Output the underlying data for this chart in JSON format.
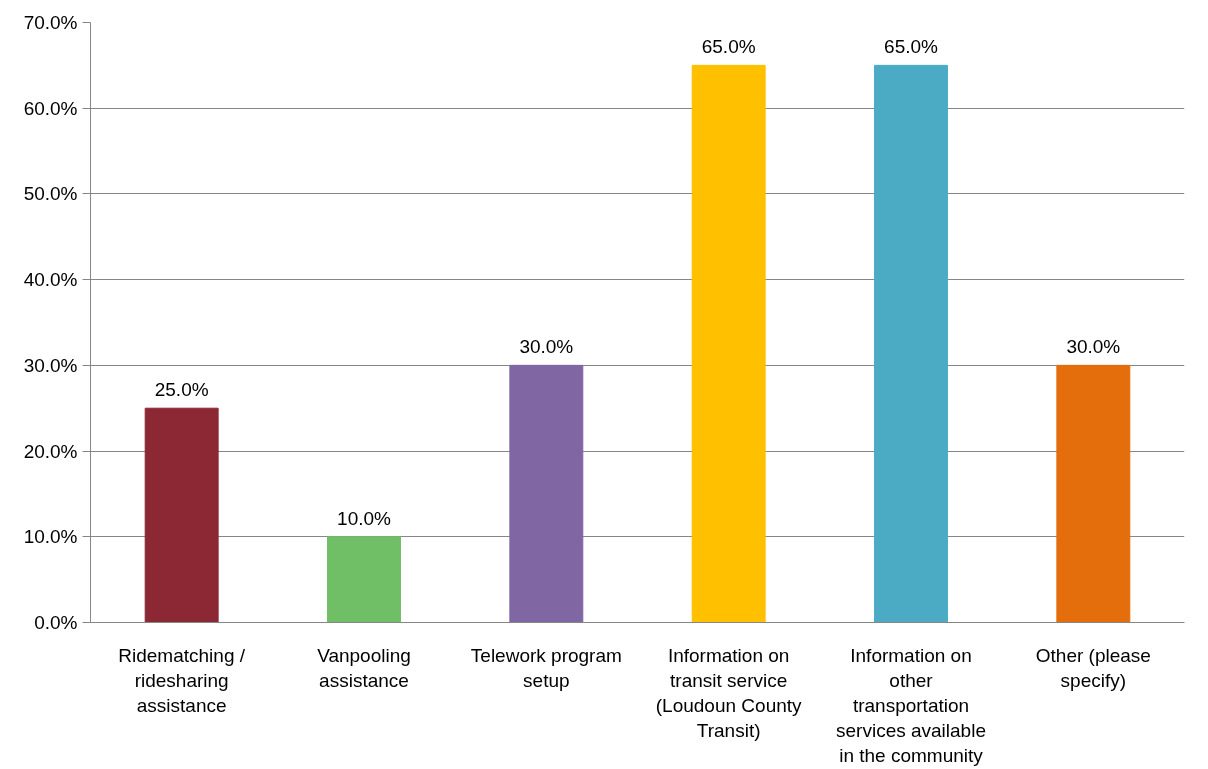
{
  "chart_data": {
    "type": "bar",
    "categories": [
      "Ridematching /\nridesharing\nassistance",
      "Vanpooling\nassistance",
      "Telework program\nsetup",
      "Information on\ntransit service\n(Loudoun County\nTransit)",
      "Information on\nother\ntransportation\nservices available\nin the community",
      "Other (please\nspecify)"
    ],
    "values": [
      25.0,
      10.0,
      30.0,
      65.0,
      65.0,
      30.0
    ],
    "colors": [
      "#8b2834",
      "#70bf67",
      "#8066a2",
      "#ffc000",
      "#4babc5",
      "#e46d0c"
    ],
    "value_labels": [
      "25.0%",
      "10.0%",
      "30.0%",
      "65.0%",
      "65.0%",
      "30.0%"
    ],
    "ylim": [
      0,
      70
    ],
    "yticks": [
      {
        "value": 0,
        "label": "0.0%"
      },
      {
        "value": 10,
        "label": "10.0%"
      },
      {
        "value": 20,
        "label": "20.0%"
      },
      {
        "value": 30,
        "label": "30.0%"
      },
      {
        "value": 40,
        "label": "40.0%"
      },
      {
        "value": 50,
        "label": "50.0%"
      },
      {
        "value": 60,
        "label": "60.0%"
      },
      {
        "value": 70,
        "label": "70.0%"
      }
    ],
    "grid": "y"
  }
}
